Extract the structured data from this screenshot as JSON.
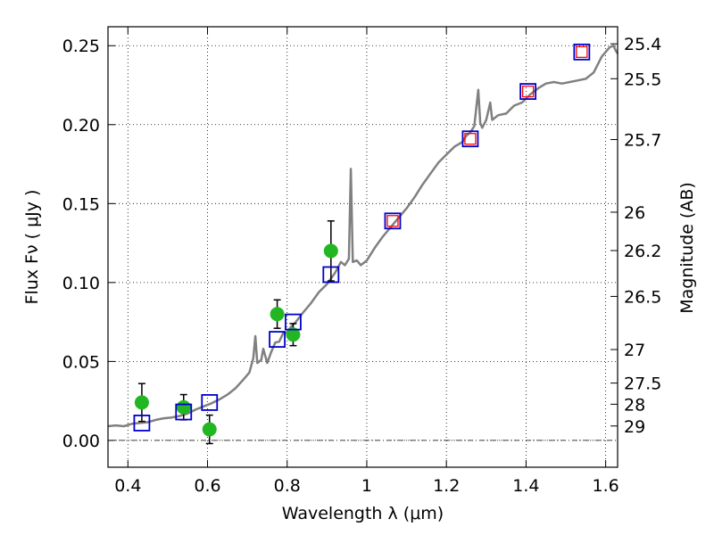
{
  "chart_data": {
    "type": "scatter",
    "xlabel": "Wavelength  λ (μm)",
    "ylabel": "Flux  Fν  ( μJy )",
    "y2label": "Magnitude (AB)",
    "xlim": [
      0.35,
      1.63
    ],
    "ylim": [
      -0.017,
      0.262
    ],
    "grid": true,
    "xticks": [
      {
        "value": 0.4,
        "label": "0.4"
      },
      {
        "value": 0.6,
        "label": "0.6"
      },
      {
        "value": 0.8,
        "label": "0.8"
      },
      {
        "value": 1.0,
        "label": "1"
      },
      {
        "value": 1.2,
        "label": "1.2"
      },
      {
        "value": 1.4,
        "label": "1.4"
      },
      {
        "value": 1.6,
        "label": "1.6"
      }
    ],
    "yticks": [
      {
        "value": 0.0,
        "label": "0.00"
      },
      {
        "value": 0.05,
        "label": "0.05"
      },
      {
        "value": 0.1,
        "label": "0.10"
      },
      {
        "value": 0.15,
        "label": "0.15"
      },
      {
        "value": 0.2,
        "label": "0.20"
      },
      {
        "value": 0.25,
        "label": "0.25"
      }
    ],
    "magnitude_ticks": [
      {
        "value": 25.4,
        "label": "25.4"
      },
      {
        "value": 25.5,
        "label": "25.5"
      },
      {
        "value": 25.7,
        "label": "25.7"
      },
      {
        "value": 26,
        "label": "26"
      },
      {
        "value": 26.2,
        "label": "26.2"
      },
      {
        "value": 26.5,
        "label": "26.5"
      },
      {
        "value": 27,
        "label": "27"
      },
      {
        "value": 27.5,
        "label": "27.5"
      },
      {
        "value": 28,
        "label": "28"
      },
      {
        "value": 29,
        "label": "29"
      }
    ],
    "model_spectrum": {
      "color": "#808080",
      "points": [
        [
          0.35,
          0.009
        ],
        [
          0.37,
          0.0095
        ],
        [
          0.39,
          0.009
        ],
        [
          0.41,
          0.0105
        ],
        [
          0.43,
          0.011
        ],
        [
          0.45,
          0.0115
        ],
        [
          0.47,
          0.013
        ],
        [
          0.49,
          0.014
        ],
        [
          0.51,
          0.0145
        ],
        [
          0.53,
          0.0155
        ],
        [
          0.55,
          0.017
        ],
        [
          0.57,
          0.0195
        ],
        [
          0.59,
          0.0215
        ],
        [
          0.61,
          0.0235
        ],
        [
          0.63,
          0.026
        ],
        [
          0.65,
          0.029
        ],
        [
          0.67,
          0.033
        ],
        [
          0.69,
          0.0385
        ],
        [
          0.705,
          0.043
        ],
        [
          0.715,
          0.052
        ],
        [
          0.72,
          0.066
        ],
        [
          0.725,
          0.049
        ],
        [
          0.735,
          0.051
        ],
        [
          0.74,
          0.058
        ],
        [
          0.75,
          0.049
        ],
        [
          0.76,
          0.056
        ],
        [
          0.77,
          0.062
        ],
        [
          0.78,
          0.0625
        ],
        [
          0.79,
          0.068
        ],
        [
          0.8,
          0.0685
        ],
        [
          0.81,
          0.072
        ],
        [
          0.82,
          0.0745
        ],
        [
          0.84,
          0.081
        ],
        [
          0.86,
          0.087
        ],
        [
          0.88,
          0.094
        ],
        [
          0.9,
          0.099
        ],
        [
          0.92,
          0.106
        ],
        [
          0.935,
          0.113
        ],
        [
          0.945,
          0.111
        ],
        [
          0.955,
          0.115
        ],
        [
          0.96,
          0.172
        ],
        [
          0.965,
          0.113
        ],
        [
          0.975,
          0.114
        ],
        [
          0.985,
          0.111
        ],
        [
          1.0,
          0.114
        ],
        [
          1.02,
          0.122
        ],
        [
          1.04,
          0.129
        ],
        [
          1.06,
          0.135
        ],
        [
          1.08,
          0.141
        ],
        [
          1.1,
          0.147
        ],
        [
          1.12,
          0.154
        ],
        [
          1.14,
          0.162
        ],
        [
          1.16,
          0.169
        ],
        [
          1.18,
          0.176
        ],
        [
          1.2,
          0.181
        ],
        [
          1.22,
          0.186
        ],
        [
          1.24,
          0.189
        ],
        [
          1.25,
          0.193
        ],
        [
          1.26,
          0.195
        ],
        [
          1.27,
          0.199
        ],
        [
          1.28,
          0.222
        ],
        [
          1.285,
          0.201
        ],
        [
          1.29,
          0.198
        ],
        [
          1.3,
          0.203
        ],
        [
          1.31,
          0.214
        ],
        [
          1.315,
          0.203
        ],
        [
          1.33,
          0.206
        ],
        [
          1.35,
          0.207
        ],
        [
          1.37,
          0.212
        ],
        [
          1.39,
          0.214
        ],
        [
          1.41,
          0.219
        ],
        [
          1.43,
          0.223
        ],
        [
          1.45,
          0.226
        ],
        [
          1.47,
          0.227
        ],
        [
          1.49,
          0.226
        ],
        [
          1.51,
          0.227
        ],
        [
          1.53,
          0.228
        ],
        [
          1.55,
          0.229
        ],
        [
          1.57,
          0.233
        ],
        [
          1.59,
          0.243
        ],
        [
          1.61,
          0.249
        ],
        [
          1.62,
          0.25
        ],
        [
          1.625,
          0.247
        ],
        [
          1.63,
          0.245
        ]
      ]
    },
    "observed_points": {
      "color": "#22b722",
      "points": [
        {
          "x": 0.435,
          "y": 0.024,
          "err": 0.012
        },
        {
          "x": 0.54,
          "y": 0.021,
          "err": 0.008
        },
        {
          "x": 0.605,
          "y": 0.007,
          "err": 0.009
        },
        {
          "x": 0.775,
          "y": 0.08,
          "err": 0.009
        },
        {
          "x": 0.815,
          "y": 0.067,
          "err": 0.007
        },
        {
          "x": 0.91,
          "y": 0.12,
          "err": 0.019
        }
      ]
    },
    "model_photometry": {
      "color": "#0000cc",
      "points": [
        {
          "x": 0.435,
          "y": 0.011
        },
        {
          "x": 0.54,
          "y": 0.018
        },
        {
          "x": 0.605,
          "y": 0.024
        },
        {
          "x": 0.775,
          "y": 0.064
        },
        {
          "x": 0.815,
          "y": 0.075
        },
        {
          "x": 0.91,
          "y": 0.105
        },
        {
          "x": 1.065,
          "y": 0.139
        },
        {
          "x": 1.26,
          "y": 0.191
        },
        {
          "x": 1.405,
          "y": 0.221
        },
        {
          "x": 1.54,
          "y": 0.246
        }
      ]
    },
    "red_markers": {
      "color": "#ff0000",
      "points": [
        {
          "x": 1.065,
          "y": 0.139
        },
        {
          "x": 1.26,
          "y": 0.191
        },
        {
          "x": 1.405,
          "y": 0.221
        },
        {
          "x": 1.54,
          "y": 0.246
        }
      ]
    }
  }
}
